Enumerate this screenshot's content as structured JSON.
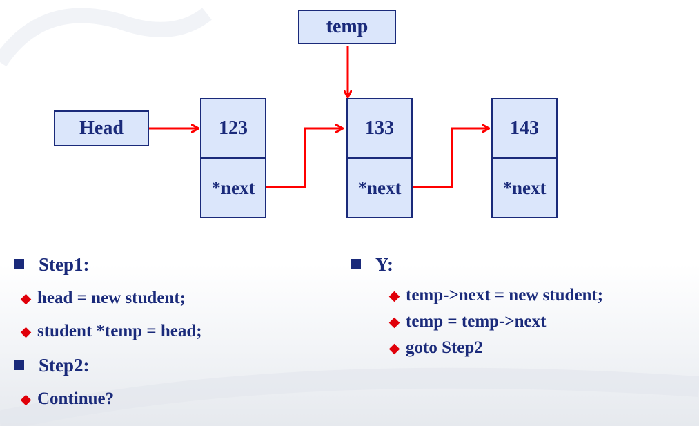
{
  "diagram": {
    "temp_label": "temp",
    "head_label": "Head",
    "nodes": [
      {
        "value": "123",
        "next": "*next"
      },
      {
        "value": "133",
        "next": "*next"
      },
      {
        "value": "143",
        "next": "*next"
      }
    ]
  },
  "left_column": {
    "step1": "Step1:",
    "step1_items": [
      "head = new student;",
      "student *temp = head;"
    ],
    "step2": "Step2:",
    "step2_items": [
      "Continue?"
    ]
  },
  "right_column": {
    "y": "Y:",
    "y_items": [
      "temp->next = new student;",
      "temp = temp->next",
      "goto Step2"
    ]
  },
  "colors": {
    "box_fill": "#dbe6fb",
    "box_border": "#1a2a7a",
    "arrow": "#ff0000",
    "text": "#1a2a7a",
    "bullet_diamond": "#e0000a"
  }
}
